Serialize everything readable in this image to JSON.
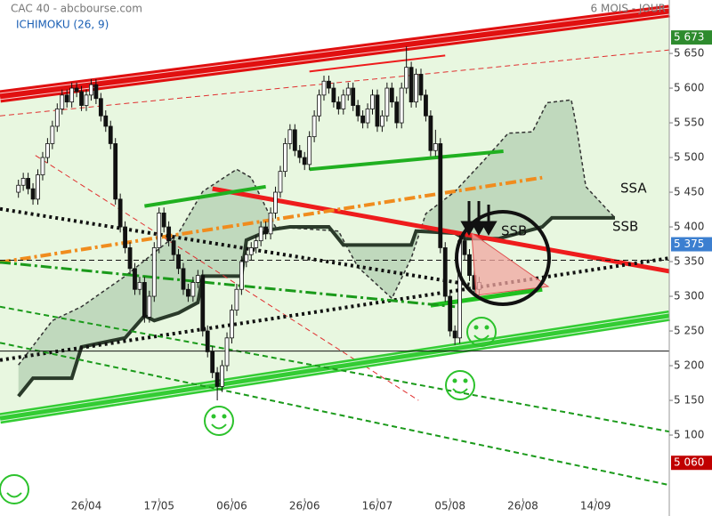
{
  "chart_data": {
    "type": "candlestick",
    "title": "CAC 40 - abcbourse.com",
    "subtitle": "ICHIMOKU (26, 9)",
    "period": "6 MOIS - JOUR",
    "xlim": [
      -3.8,
      134.2
    ],
    "ylim": [
      5009,
      5727
    ],
    "xticks": [
      {
        "value": 14,
        "label": "26/04"
      },
      {
        "value": 29,
        "label": "17/05"
      },
      {
        "value": 44,
        "label": "06/06"
      },
      {
        "value": 59,
        "label": "26/06"
      },
      {
        "value": 74,
        "label": "16/07"
      },
      {
        "value": 89,
        "label": "05/08"
      },
      {
        "value": 104,
        "label": "26/08"
      },
      {
        "value": 119,
        "label": "14/09"
      }
    ],
    "yticks": [
      {
        "value": 5100,
        "label": "5 100"
      },
      {
        "value": 5150,
        "label": "5 150"
      },
      {
        "value": 5200,
        "label": "5 200"
      },
      {
        "value": 5250,
        "label": "5 250"
      },
      {
        "value": 5300,
        "label": "5 300"
      },
      {
        "value": 5350,
        "label": "5 350"
      },
      {
        "value": 5400,
        "label": "5 400"
      },
      {
        "value": 5450,
        "label": "5 450"
      },
      {
        "value": 5500,
        "label": "5 500"
      },
      {
        "value": 5550,
        "label": "5 550"
      },
      {
        "value": 5600,
        "label": "5 600"
      },
      {
        "value": 5650,
        "label": "5 650"
      }
    ],
    "price_labels": [
      {
        "value": 5673,
        "label": "5 673",
        "color": "#2e8b2e"
      },
      {
        "value": 5375,
        "label": "5 375",
        "color": "#3c7fd0"
      },
      {
        "value": 5060,
        "label": "5 060",
        "color": "#c00000"
      }
    ],
    "candles": {
      "up_color": "#ffffff",
      "down_color": "#111111",
      "x": [
        0,
        1,
        2,
        3,
        4,
        5,
        6,
        7,
        8,
        9,
        10,
        11,
        12,
        13,
        14,
        15,
        16,
        17,
        18,
        19,
        20,
        21,
        22,
        23,
        24,
        25,
        26,
        27,
        28,
        29,
        30,
        31,
        32,
        33,
        34,
        35,
        36,
        37,
        38,
        39,
        40,
        41,
        42,
        43,
        44,
        45,
        46,
        47,
        48,
        49,
        50,
        51,
        52,
        53,
        54,
        55,
        56,
        57,
        58,
        59,
        60,
        61,
        62,
        63,
        64,
        65,
        66,
        67,
        68,
        69,
        70,
        71,
        72,
        73,
        74,
        75,
        76,
        77,
        78,
        79,
        80,
        81,
        82,
        83,
        84,
        85,
        86,
        87,
        88,
        89,
        90,
        91,
        92,
        93,
        94,
        95
      ],
      "open": [
        5450,
        5460,
        5470,
        5455,
        5440,
        5475,
        5500,
        5520,
        5545,
        5570,
        5590,
        5580,
        5600,
        5595,
        5575,
        5590,
        5605,
        5585,
        5560,
        5545,
        5520,
        5440,
        5400,
        5370,
        5340,
        5310,
        5320,
        5270,
        5300,
        5370,
        5420,
        5400,
        5380,
        5360,
        5340,
        5310,
        5300,
        5320,
        5330,
        5250,
        5220,
        5190,
        5170,
        5200,
        5240,
        5280,
        5310,
        5350,
        5360,
        5370,
        5380,
        5400,
        5390,
        5420,
        5450,
        5480,
        5520,
        5540,
        5510,
        5500,
        5490,
        5530,
        5560,
        5590,
        5610,
        5600,
        5580,
        5570,
        5590,
        5600,
        5575,
        5560,
        5550,
        5570,
        5590,
        5545,
        5560,
        5600,
        5580,
        5550,
        5600,
        5630,
        5580,
        5620,
        5590,
        5560,
        5510,
        5520,
        5370,
        5300,
        5250,
        5240,
        5380,
        5360,
        5330,
        5310
      ],
      "high": [
        5468,
        5478,
        5478,
        5463,
        5483,
        5508,
        5528,
        5553,
        5578,
        5598,
        5598,
        5608,
        5608,
        5603,
        5598,
        5613,
        5613,
        5593,
        5568,
        5553,
        5528,
        5448,
        5408,
        5378,
        5348,
        5328,
        5328,
        5308,
        5378,
        5428,
        5428,
        5408,
        5388,
        5368,
        5348,
        5318,
        5328,
        5338,
        5338,
        5258,
        5228,
        5198,
        5208,
        5248,
        5288,
        5318,
        5358,
        5368,
        5378,
        5388,
        5408,
        5408,
        5428,
        5458,
        5488,
        5528,
        5548,
        5548,
        5518,
        5508,
        5538,
        5568,
        5598,
        5618,
        5618,
        5608,
        5588,
        5598,
        5608,
        5608,
        5583,
        5568,
        5578,
        5598,
        5598,
        5568,
        5608,
        5608,
        5588,
        5608,
        5660,
        5638,
        5628,
        5628,
        5598,
        5568,
        5540,
        5528,
        5378,
        5308,
        5258,
        5388,
        5388,
        5368,
        5338,
        5328
      ],
      "low": [
        5442,
        5452,
        5447,
        5432,
        5432,
        5467,
        5492,
        5512,
        5537,
        5562,
        5572,
        5572,
        5587,
        5567,
        5567,
        5582,
        5577,
        5552,
        5537,
        5512,
        5432,
        5392,
        5362,
        5332,
        5302,
        5302,
        5262,
        5262,
        5292,
        5362,
        5392,
        5372,
        5352,
        5332,
        5302,
        5292,
        5292,
        5312,
        5242,
        5212,
        5182,
        5150,
        5162,
        5192,
        5232,
        5272,
        5302,
        5342,
        5352,
        5362,
        5372,
        5382,
        5382,
        5412,
        5442,
        5472,
        5512,
        5502,
        5492,
        5482,
        5482,
        5522,
        5552,
        5582,
        5592,
        5572,
        5562,
        5562,
        5582,
        5567,
        5552,
        5542,
        5542,
        5562,
        5537,
        5537,
        5552,
        5572,
        5542,
        5542,
        5592,
        5572,
        5572,
        5582,
        5552,
        5502,
        5502,
        5362,
        5292,
        5242,
        5230,
        5232,
        5352,
        5322,
        5302,
        5302
      ],
      "close": [
        5460,
        5470,
        5455,
        5440,
        5475,
        5500,
        5520,
        5545,
        5570,
        5590,
        5580,
        5600,
        5595,
        5575,
        5590,
        5605,
        5585,
        5560,
        5545,
        5520,
        5440,
        5400,
        5370,
        5340,
        5310,
        5320,
        5270,
        5300,
        5370,
        5420,
        5400,
        5380,
        5360,
        5340,
        5310,
        5300,
        5320,
        5330,
        5250,
        5220,
        5190,
        5170,
        5200,
        5240,
        5280,
        5310,
        5350,
        5360,
        5370,
        5380,
        5400,
        5390,
        5420,
        5450,
        5480,
        5520,
        5540,
        5510,
        5500,
        5490,
        5530,
        5560,
        5590,
        5610,
        5600,
        5580,
        5570,
        5590,
        5600,
        5575,
        5560,
        5550,
        5570,
        5590,
        5545,
        5560,
        5600,
        5580,
        5550,
        5600,
        5630,
        5580,
        5620,
        5590,
        5560,
        5510,
        5520,
        5370,
        5300,
        5250,
        5240,
        5380,
        5360,
        5330,
        5310,
        5320
      ]
    },
    "cloud": {
      "color": "#b9d3b6",
      "ssa": {
        "x": [
          0,
          7,
          13,
          22,
          33,
          38,
          45,
          48,
          53,
          66,
          70,
          77,
          81,
          84,
          90,
          96,
          101,
          106,
          109,
          114,
          115,
          117,
          123
        ],
        "values": [
          5201,
          5265,
          5285,
          5329,
          5391,
          5451,
          5483,
          5471,
          5400,
          5394,
          5342,
          5297,
          5355,
          5419,
          5451,
          5496,
          5535,
          5537,
          5579,
          5583,
          5547,
          5458,
          5413
        ]
      },
      "ssb": {
        "x": [
          0,
          3,
          11,
          13,
          22,
          26,
          28,
          33,
          37,
          38,
          46,
          47,
          52,
          56,
          64,
          67,
          81,
          82,
          90,
          92,
          99,
          108,
          110,
          123
        ],
        "values": [
          5156,
          5182,
          5182,
          5227,
          5240,
          5272,
          5265,
          5276,
          5291,
          5329,
          5329,
          5381,
          5396,
          5400,
          5400,
          5374,
          5374,
          5394,
          5391,
          5383,
          5383,
          5400,
          5413,
          5413
        ]
      }
    },
    "lines": [
      {
        "x": [
          -3.8,
          134.2
        ],
        "values": [
          5588,
          5711
        ],
        "color": "#e01010",
        "style": "solid",
        "width": 14
      },
      {
        "x": [
          -3.8,
          134.2
        ],
        "values": [
          5560,
          5655
        ],
        "color": "#e03030",
        "style": "dashed",
        "width": 1
      },
      {
        "x": [
          3.5,
          82.5
        ],
        "values": [
          5503,
          5150
        ],
        "color": "#e03030",
        "style": "dashed",
        "width": 1
      },
      {
        "x": [
          40,
          134.2
        ],
        "values": [
          5455,
          5336
        ],
        "color": "#ee1c1c",
        "style": "solid",
        "width": 5
      },
      {
        "x": [
          60,
          88
        ],
        "values": [
          5624,
          5647
        ],
        "color": "#ee1c1c",
        "style": "solid",
        "width": 2
      },
      {
        "x": [
          26,
          51
        ],
        "values": [
          5430,
          5458
        ],
        "color": "#20b020",
        "style": "solid",
        "width": 4
      },
      {
        "x": [
          60,
          100
        ],
        "values": [
          5483,
          5509
        ],
        "color": "#20b020",
        "style": "solid",
        "width": 4
      },
      {
        "x": [
          85,
          108
        ],
        "values": [
          5287,
          5310
        ],
        "color": "#20c020",
        "style": "solid",
        "width": 5
      },
      {
        "x": [
          -3.8,
          108
        ],
        "values": [
          5349,
          5471
        ],
        "color": "#f08c1e",
        "style": "dashdot",
        "width": 4
      },
      {
        "x": [
          -3.8,
          93
        ],
        "values": [
          5426,
          5317
        ],
        "color": "#111111",
        "style": "dotted",
        "width": 4
      },
      {
        "x": [
          -3.8,
          134.2
        ],
        "values": [
          5208,
          5355
        ],
        "color": "#111111",
        "style": "dotted",
        "width": 4
      },
      {
        "x": [
          -3.8,
          90
        ],
        "values": [
          5349,
          5285
        ],
        "color": "#1a9a1a",
        "style": "dashdot",
        "width": 3
      },
      {
        "x": [
          -3.8,
          134.2
        ],
        "values": [
          5124,
          5272
        ],
        "color": "#33cc33",
        "style": "solid",
        "width": 12
      },
      {
        "x": [
          -3.8,
          134.2
        ],
        "values": [
          5285,
          5105
        ],
        "color": "#1a9a1a",
        "style": "dashed",
        "width": 2
      },
      {
        "x": [
          -3.8,
          134.2
        ],
        "values": [
          5233,
          5028
        ],
        "color": "#1a9a1a",
        "style": "dashed",
        "width": 2
      },
      {
        "x": [
          -3.8,
          134.2
        ],
        "values": [
          5221,
          5221
        ],
        "color": "#111111",
        "style": "solid",
        "width": 1
      },
      {
        "x": [
          -3.8,
          134.2
        ],
        "values": [
          5352,
          5352
        ],
        "color": "#111111",
        "style": "dashed",
        "width": 1
      }
    ],
    "annotations": [
      "SSA",
      "SSB",
      "SSB"
    ]
  }
}
